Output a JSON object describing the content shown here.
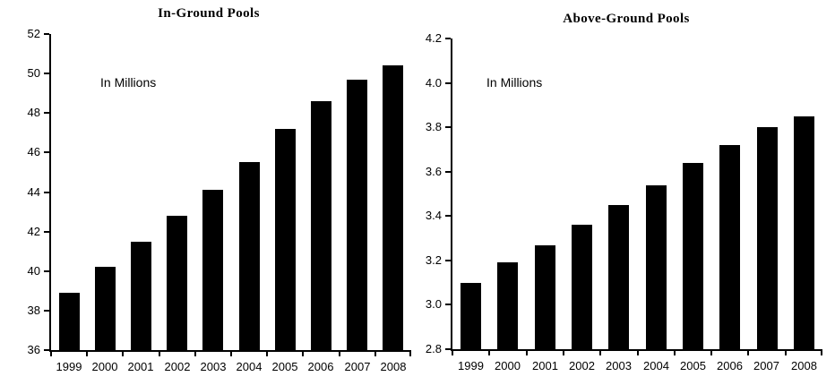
{
  "figure": {
    "background_color": "#ffffff",
    "text_color": "#000000"
  },
  "chart_data": [
    {
      "type": "bar",
      "title": "In-Ground Pools",
      "annotation": "In Millions",
      "categories": [
        "1999",
        "2000",
        "2001",
        "2002",
        "2003",
        "2004",
        "2005",
        "2006",
        "2007",
        "2008"
      ],
      "values": [
        38.9,
        40.2,
        41.5,
        42.8,
        44.1,
        45.5,
        47.2,
        48.6,
        49.7,
        50.4
      ],
      "xlabel": "",
      "ylabel": "",
      "ylim": [
        36,
        52
      ],
      "ytick_labels": [
        "36",
        "38",
        "40",
        "42",
        "44",
        "46",
        "48",
        "50",
        "52"
      ],
      "bar_color": "#000000",
      "axis_color": "#000000",
      "grid": false,
      "legend": false
    },
    {
      "type": "bar",
      "title": "Above-Ground Pools",
      "annotation": "In Millions",
      "categories": [
        "1999",
        "2000",
        "2001",
        "2002",
        "2003",
        "2004",
        "2005",
        "2006",
        "2007",
        "2008"
      ],
      "values": [
        3.1,
        3.19,
        3.27,
        3.36,
        3.45,
        3.54,
        3.64,
        3.72,
        3.8,
        3.85
      ],
      "xlabel": "",
      "ylabel": "",
      "ylim": [
        2.8,
        4.2
      ],
      "ytick_labels": [
        "2.8",
        "3.0",
        "3.2",
        "3.4",
        "3.6",
        "3.8",
        "4.0",
        "4.2"
      ],
      "bar_color": "#000000",
      "axis_color": "#000000",
      "grid": false,
      "legend": false
    }
  ]
}
